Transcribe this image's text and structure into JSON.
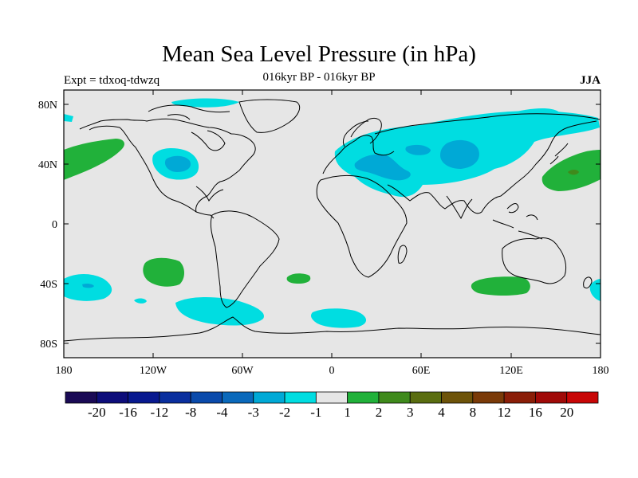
{
  "title": "Mean Sea Level Pressure (in hPa)",
  "subtitle": "016kyr BP - 016kyr BP",
  "experiment": "Expt = tdxoq-tdwzq",
  "season": "JJA",
  "colors": {
    "background": "#e6e6e6",
    "coastline": "#000000",
    "neg1": "#00dde1",
    "neg2": "#00a9d6",
    "pos1": "#21b13a",
    "pos2": "#3f8a1c"
  },
  "map": {
    "projection": "cylindrical-equidistant",
    "lon_range": [
      -180,
      180
    ],
    "lat_range": [
      -90,
      90
    ],
    "lon_ticks": [
      "180",
      "120W",
      "60W",
      "0",
      "60E",
      "120E",
      "180"
    ],
    "lat_ticks": [
      "80N",
      "40N",
      "0",
      "40S",
      "80S"
    ],
    "anomaly_regions": [
      {
        "label": "Eurasia",
        "sign": "negative",
        "level": "-1"
      },
      {
        "label": "Central Asia core",
        "sign": "negative",
        "level": "-2"
      },
      {
        "label": "North America west",
        "sign": "negative",
        "level": "-1"
      },
      {
        "label": "Antarctic coast",
        "sign": "negative",
        "level": "-1"
      },
      {
        "label": "South Atlantic",
        "sign": "negative",
        "level": "-1"
      },
      {
        "label": "South Pacific west",
        "sign": "negative",
        "level": "-1"
      },
      {
        "label": "North Pacific east",
        "sign": "positive",
        "level": "1"
      },
      {
        "label": "North Pacific west",
        "sign": "positive",
        "level": "1"
      },
      {
        "label": "South Pacific east",
        "sign": "positive",
        "level": "1"
      },
      {
        "label": "Southern Indian Ocean",
        "sign": "positive",
        "level": "1"
      }
    ]
  },
  "colorbar": {
    "labels": [
      "-20",
      "-16",
      "-12",
      "-8",
      "-4",
      "-3",
      "-2",
      "-1",
      "1",
      "2",
      "3",
      "4",
      "8",
      "12",
      "16",
      "20"
    ],
    "colors": [
      "#1a0a55",
      "#0d0d7a",
      "#08198f",
      "#0a2f9e",
      "#0a4aab",
      "#0a69bb",
      "#00a9d6",
      "#00dde1",
      "#e6e6e6",
      "#21b13a",
      "#3f8a1c",
      "#5a6d10",
      "#6d5309",
      "#7a3a08",
      "#8a1e08",
      "#a00a08",
      "#c80606"
    ]
  }
}
